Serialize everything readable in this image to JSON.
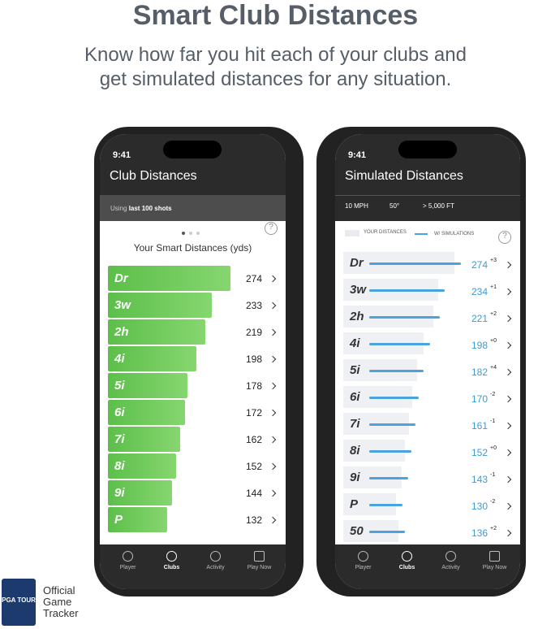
{
  "header": {
    "title": "Smart Club Distances",
    "subtitle_lines": [
      "Know how far you hit each of your clubs and",
      "get simulated distances for any situation."
    ]
  },
  "phone1": {
    "time": "9:41",
    "title": "Club Distances",
    "using_prefix": "Using",
    "using_value": "last 100 shots",
    "chart_title": "Your Smart Distances (yds)",
    "help": "?",
    "clubs": [
      {
        "name": "Dr",
        "distance": 274
      },
      {
        "name": "3w",
        "distance": 233
      },
      {
        "name": "2h",
        "distance": 219
      },
      {
        "name": "4i",
        "distance": 198
      },
      {
        "name": "5i",
        "distance": 178
      },
      {
        "name": "6i",
        "distance": 172
      },
      {
        "name": "7i",
        "distance": 162
      },
      {
        "name": "8i",
        "distance": 152
      },
      {
        "name": "9i",
        "distance": 144
      },
      {
        "name": "P",
        "distance": 132
      }
    ],
    "tabs": [
      "Player",
      "Clubs",
      "Activity",
      "Play Now"
    ]
  },
  "phone2": {
    "time": "9:41",
    "title": "Simulated Distances",
    "filters": [
      "10 MPH",
      "50°",
      "> 5,000 FT"
    ],
    "legend": [
      "YOUR DISTANCES",
      "W/ SIMULATIONS"
    ],
    "help": "?",
    "clubs": [
      {
        "name": "Dr",
        "distance": 274,
        "delta": "+3"
      },
      {
        "name": "3w",
        "distance": 234,
        "delta": "+1"
      },
      {
        "name": "2h",
        "distance": 221,
        "delta": "+2"
      },
      {
        "name": "4i",
        "distance": 198,
        "delta": "+0"
      },
      {
        "name": "5i",
        "distance": 182,
        "delta": "+4"
      },
      {
        "name": "6i",
        "distance": 170,
        "delta": "-2"
      },
      {
        "name": "7i",
        "distance": 161,
        "delta": "-1"
      },
      {
        "name": "8i",
        "distance": 152,
        "delta": "+0"
      },
      {
        "name": "9i",
        "distance": 143,
        "delta": "-1"
      },
      {
        "name": "P",
        "distance": 130,
        "delta": "-2"
      },
      {
        "name": "50",
        "distance": 136,
        "delta": "+2"
      }
    ],
    "tabs": [
      "Player",
      "Clubs",
      "Activity",
      "Play Now"
    ]
  },
  "footer": {
    "brand": "PGA TOUR",
    "lines": [
      "Official",
      "Game",
      "Tracker"
    ]
  }
}
